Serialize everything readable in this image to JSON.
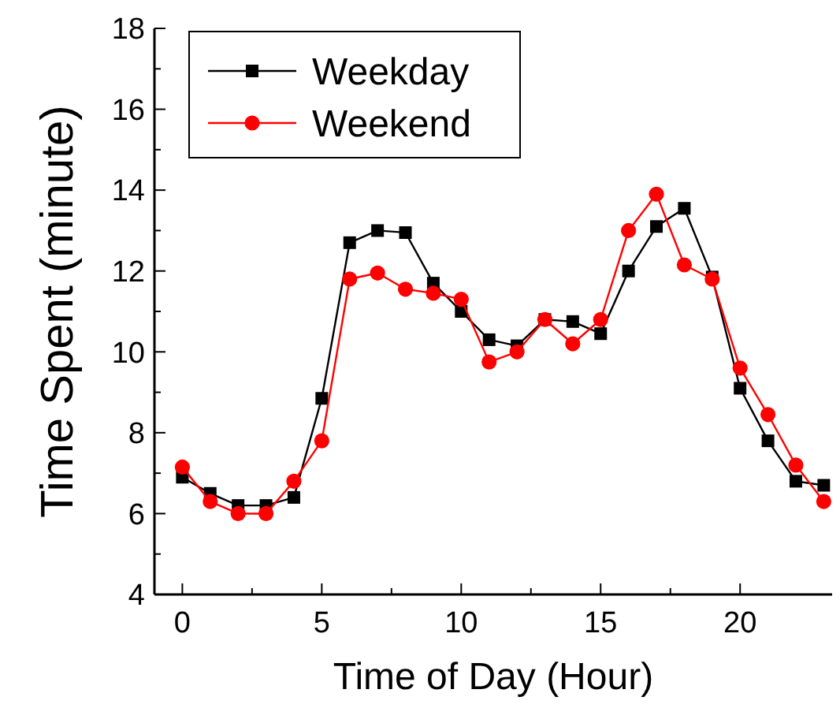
{
  "chart_data": {
    "type": "line",
    "xlabel": "Time of Day (Hour)",
    "ylabel": "Time Spent (minute)",
    "x": [
      0,
      1,
      2,
      3,
      4,
      5,
      6,
      7,
      8,
      9,
      10,
      11,
      12,
      13,
      14,
      15,
      16,
      17,
      18,
      19,
      20,
      21,
      22,
      23
    ],
    "series": [
      {
        "name": "Weekday",
        "color": "#000000",
        "marker": "square",
        "values": [
          6.9,
          6.5,
          6.2,
          6.2,
          6.4,
          8.85,
          12.7,
          13.0,
          12.95,
          11.7,
          11.0,
          10.3,
          10.15,
          10.8,
          10.75,
          10.45,
          12.0,
          13.1,
          13.55,
          11.85,
          9.1,
          7.8,
          6.8,
          6.7
        ]
      },
      {
        "name": "Weekend",
        "color": "#ff0000",
        "marker": "circle",
        "values": [
          7.15,
          6.3,
          6.0,
          6.0,
          6.8,
          7.8,
          11.8,
          11.95,
          11.55,
          11.45,
          11.3,
          9.75,
          10.0,
          10.8,
          10.2,
          10.8,
          13.0,
          13.9,
          12.15,
          11.8,
          9.6,
          8.45,
          7.2,
          6.3
        ]
      }
    ],
    "xlim": [
      -1,
      23.3
    ],
    "xticks": [
      0,
      5,
      10,
      15,
      20
    ],
    "ylim": [
      4,
      18
    ],
    "yticks": [
      4,
      6,
      8,
      10,
      12,
      14,
      16,
      18
    ],
    "legend": "top left",
    "grid": false,
    "line_style": "solid"
  }
}
